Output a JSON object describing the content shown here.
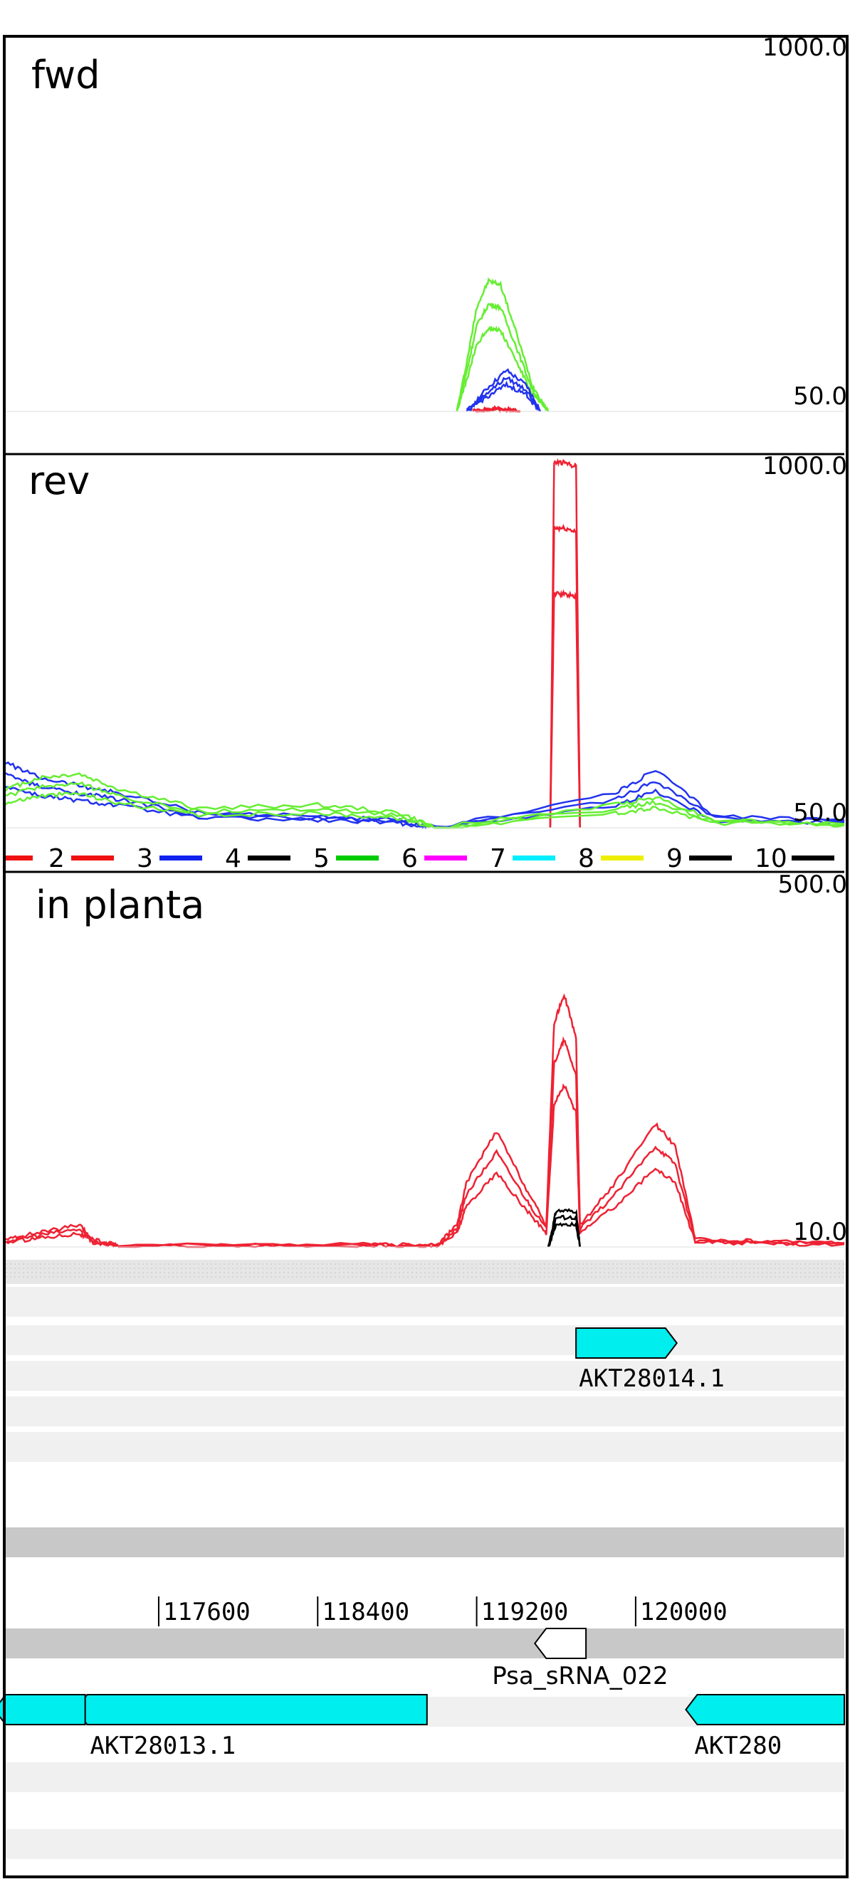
{
  "panels": [
    {
      "id": "fwd",
      "title": "fwd",
      "ymax_label": "1000.0",
      "ymin_label": "50.0",
      "series_colors": [
        "#66ee33",
        "#2233ee",
        "#ee2233"
      ]
    },
    {
      "id": "rev",
      "title": "rev",
      "ymax_label": "1000.0",
      "ymin_label": "50.0",
      "series_colors": [
        "#ee2233",
        "#66ee33",
        "#2233ee"
      ]
    },
    {
      "id": "in_planta",
      "title": "in planta",
      "ymax_label": "500.0",
      "ymin_label": "10.0",
      "series_colors": [
        "#ee2233",
        "#000000",
        "#2233ee",
        "#00cc00",
        "#ff00ff",
        "#00eeff",
        "#eeee00"
      ]
    }
  ],
  "legend": {
    "items": [
      {
        "label": "2",
        "color": "#ee1111"
      },
      {
        "label": "3",
        "color": "#1122ee"
      },
      {
        "label": "4",
        "color": "#000000"
      },
      {
        "label": "5",
        "color": "#00cc00"
      },
      {
        "label": "6",
        "color": "#ff00ff"
      },
      {
        "label": "7",
        "color": "#00eeff"
      },
      {
        "label": "8",
        "color": "#eeee00"
      },
      {
        "label": "9",
        "color": "#000000"
      },
      {
        "label": "10",
        "color": "#000000"
      }
    ]
  },
  "chart_data": {
    "type": "line",
    "x_range": [
      116830,
      121050
    ],
    "panels": [
      {
        "title": "fwd",
        "ylim": [
          50,
          1000
        ],
        "series": [
          {
            "color": "#66ee33",
            "x": [
              119100,
              119150,
              119200,
              119260,
              119320,
              119400,
              119480,
              119560
            ],
            "y": [
              50,
              180,
              330,
              400,
              390,
              260,
              120,
              50
            ]
          },
          {
            "color": "#2233ee",
            "x": [
              119150,
              119250,
              119350,
              119450,
              119520
            ],
            "y": [
              50,
              110,
              160,
              120,
              50
            ]
          },
          {
            "color": "#ee2233",
            "x": [
              119180,
              119300,
              119420
            ],
            "y": [
              50,
              60,
              50
            ]
          }
        ]
      },
      {
        "title": "rev",
        "ylim": [
          50,
          1000
        ],
        "series": [
          {
            "color": "#ee2233",
            "x": [
              119570,
              119590,
              119640,
              119700,
              119720
            ],
            "y": [
              50,
              1000,
              1000,
              990,
              50
            ]
          },
          {
            "color": "#2233ee",
            "x": [
              116830,
              117000,
              117200,
              117400,
              117800,
              118400,
              118800,
              119000,
              119900,
              120100,
              120400,
              121050
            ],
            "y": [
              220,
              180,
              160,
              140,
              90,
              80,
              70,
              50,
              140,
              200,
              80,
              70
            ]
          },
          {
            "color": "#66ee33",
            "x": [
              116830,
              117000,
              117200,
              117400,
              117800,
              118400,
              118800,
              119000,
              119900,
              120100,
              120400,
              121050
            ],
            "y": [
              150,
              180,
              190,
              150,
              100,
              110,
              90,
              50,
              110,
              130,
              70,
              60
            ]
          }
        ]
      },
      {
        "title": "in planta",
        "ylim": [
          10,
          500
        ],
        "series": [
          {
            "color": "#ee2233",
            "x": [
              116830,
              117000,
              117200,
              117270,
              117400,
              118600,
              119000,
              119100,
              119150,
              119300,
              119450,
              119550,
              119590,
              119640,
              119700,
              119720,
              119900,
              120100,
              120200,
              120300,
              120600,
              121050
            ],
            "y": [
              20,
              30,
              40,
              20,
              12,
              14,
              12,
              40,
              100,
              170,
              90,
              40,
              320,
              360,
              300,
              40,
              100,
              180,
              150,
              20,
              18,
              16
            ]
          },
          {
            "color": "#000000",
            "x": [
              119560,
              119600,
              119700,
              119720
            ],
            "y": [
              10,
              60,
              60,
              10
            ]
          }
        ]
      }
    ],
    "track_axis": {
      "ticks": [
        117600,
        118400,
        119200,
        120000
      ]
    },
    "features": [
      {
        "name": "AKT28014.1",
        "start": 119700,
        "end": 120150,
        "strand": "+",
        "color": "#00eeee"
      },
      {
        "name": "Psa_sRNA_022",
        "start": 119550,
        "end": 119750,
        "strand": "-",
        "color": "#ffffff"
      },
      {
        "name": "AKT28013.1",
        "start": 117240,
        "end": 118950,
        "strand": "-",
        "color": "#00eeee"
      },
      {
        "name": "",
        "start": 116830,
        "end": 117230,
        "strand": "-",
        "color": "#00eeee"
      },
      {
        "name": "AKT280",
        "start": 120310,
        "end": 121050,
        "strand": "-",
        "color": "#00eeee"
      }
    ]
  }
}
